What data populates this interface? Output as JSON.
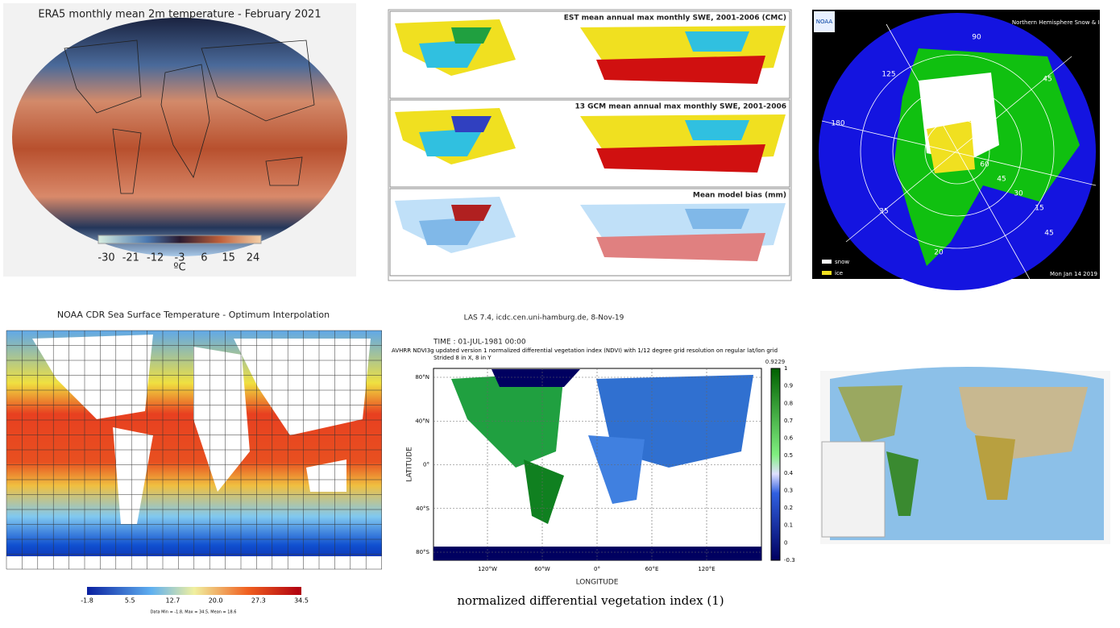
{
  "era5": {
    "title": "ERA5 monthly mean 2m temperature - February 2021",
    "colorbar_ticks": [
      "-30",
      "-21",
      "-12",
      "-3",
      "6",
      "15",
      "24"
    ],
    "unit": "ºC"
  },
  "swe": {
    "panel_titles": [
      "EST mean annual max monthly SWE, 2001-2006 (CMC)",
      "13 GCM mean annual max monthly SWE, 2001-2006",
      "Mean model bias (mm)"
    ]
  },
  "snow_ice": {
    "logo": "NOAA",
    "title": "Northern Hemisphere Snow & Ice Chart",
    "lat_lon_labels": [
      "90",
      "125",
      "180",
      "35",
      "45",
      "60",
      "45",
      "30",
      "15",
      "45",
      "20"
    ],
    "legend": [
      "snow",
      "ice"
    ],
    "date": "Mon Jan 14   2019"
  },
  "sst": {
    "title": "NOAA CDR Sea Surface Temperature - Optimum Interpolation",
    "colorbar_ticks": [
      "-1.8",
      "5.5",
      "12.7",
      "20.0",
      "27.3",
      "34.5"
    ],
    "note": "Data Min = -1.8, Max = 34.5, Mean = 18.6"
  },
  "ndvi": {
    "header": "LAS 7.4, icdc.cen.uni-hamburg.de, 8-Nov-19",
    "time": "TIME : 01-JUL-1981 00:00",
    "description": "AVHRR NDVI3g updated version 1 normalized differential vegetation index (NDVI) with 1/12 degree grid resolution on regular lat/lon grid",
    "stride": "Strided 8 in X, 8 in Y",
    "y_label": "LATITUDE",
    "x_label": "LONGITUDE",
    "lat_labels": [
      "80°N",
      "40°N",
      "0°",
      "40°S",
      "80°S"
    ],
    "lon_labels": [
      "120°W",
      "60°W",
      "0°",
      "60°E",
      "120°E"
    ],
    "colorbar_max": "0.9229",
    "colorbar_ticks": [
      "1",
      "0.9",
      "0.8",
      "0.7",
      "0.6",
      "0.5",
      "0.4",
      "0.3",
      "0.2",
      "0.1",
      "0",
      "-0.3"
    ],
    "caption": "normalized differential vegetation index (1)"
  }
}
